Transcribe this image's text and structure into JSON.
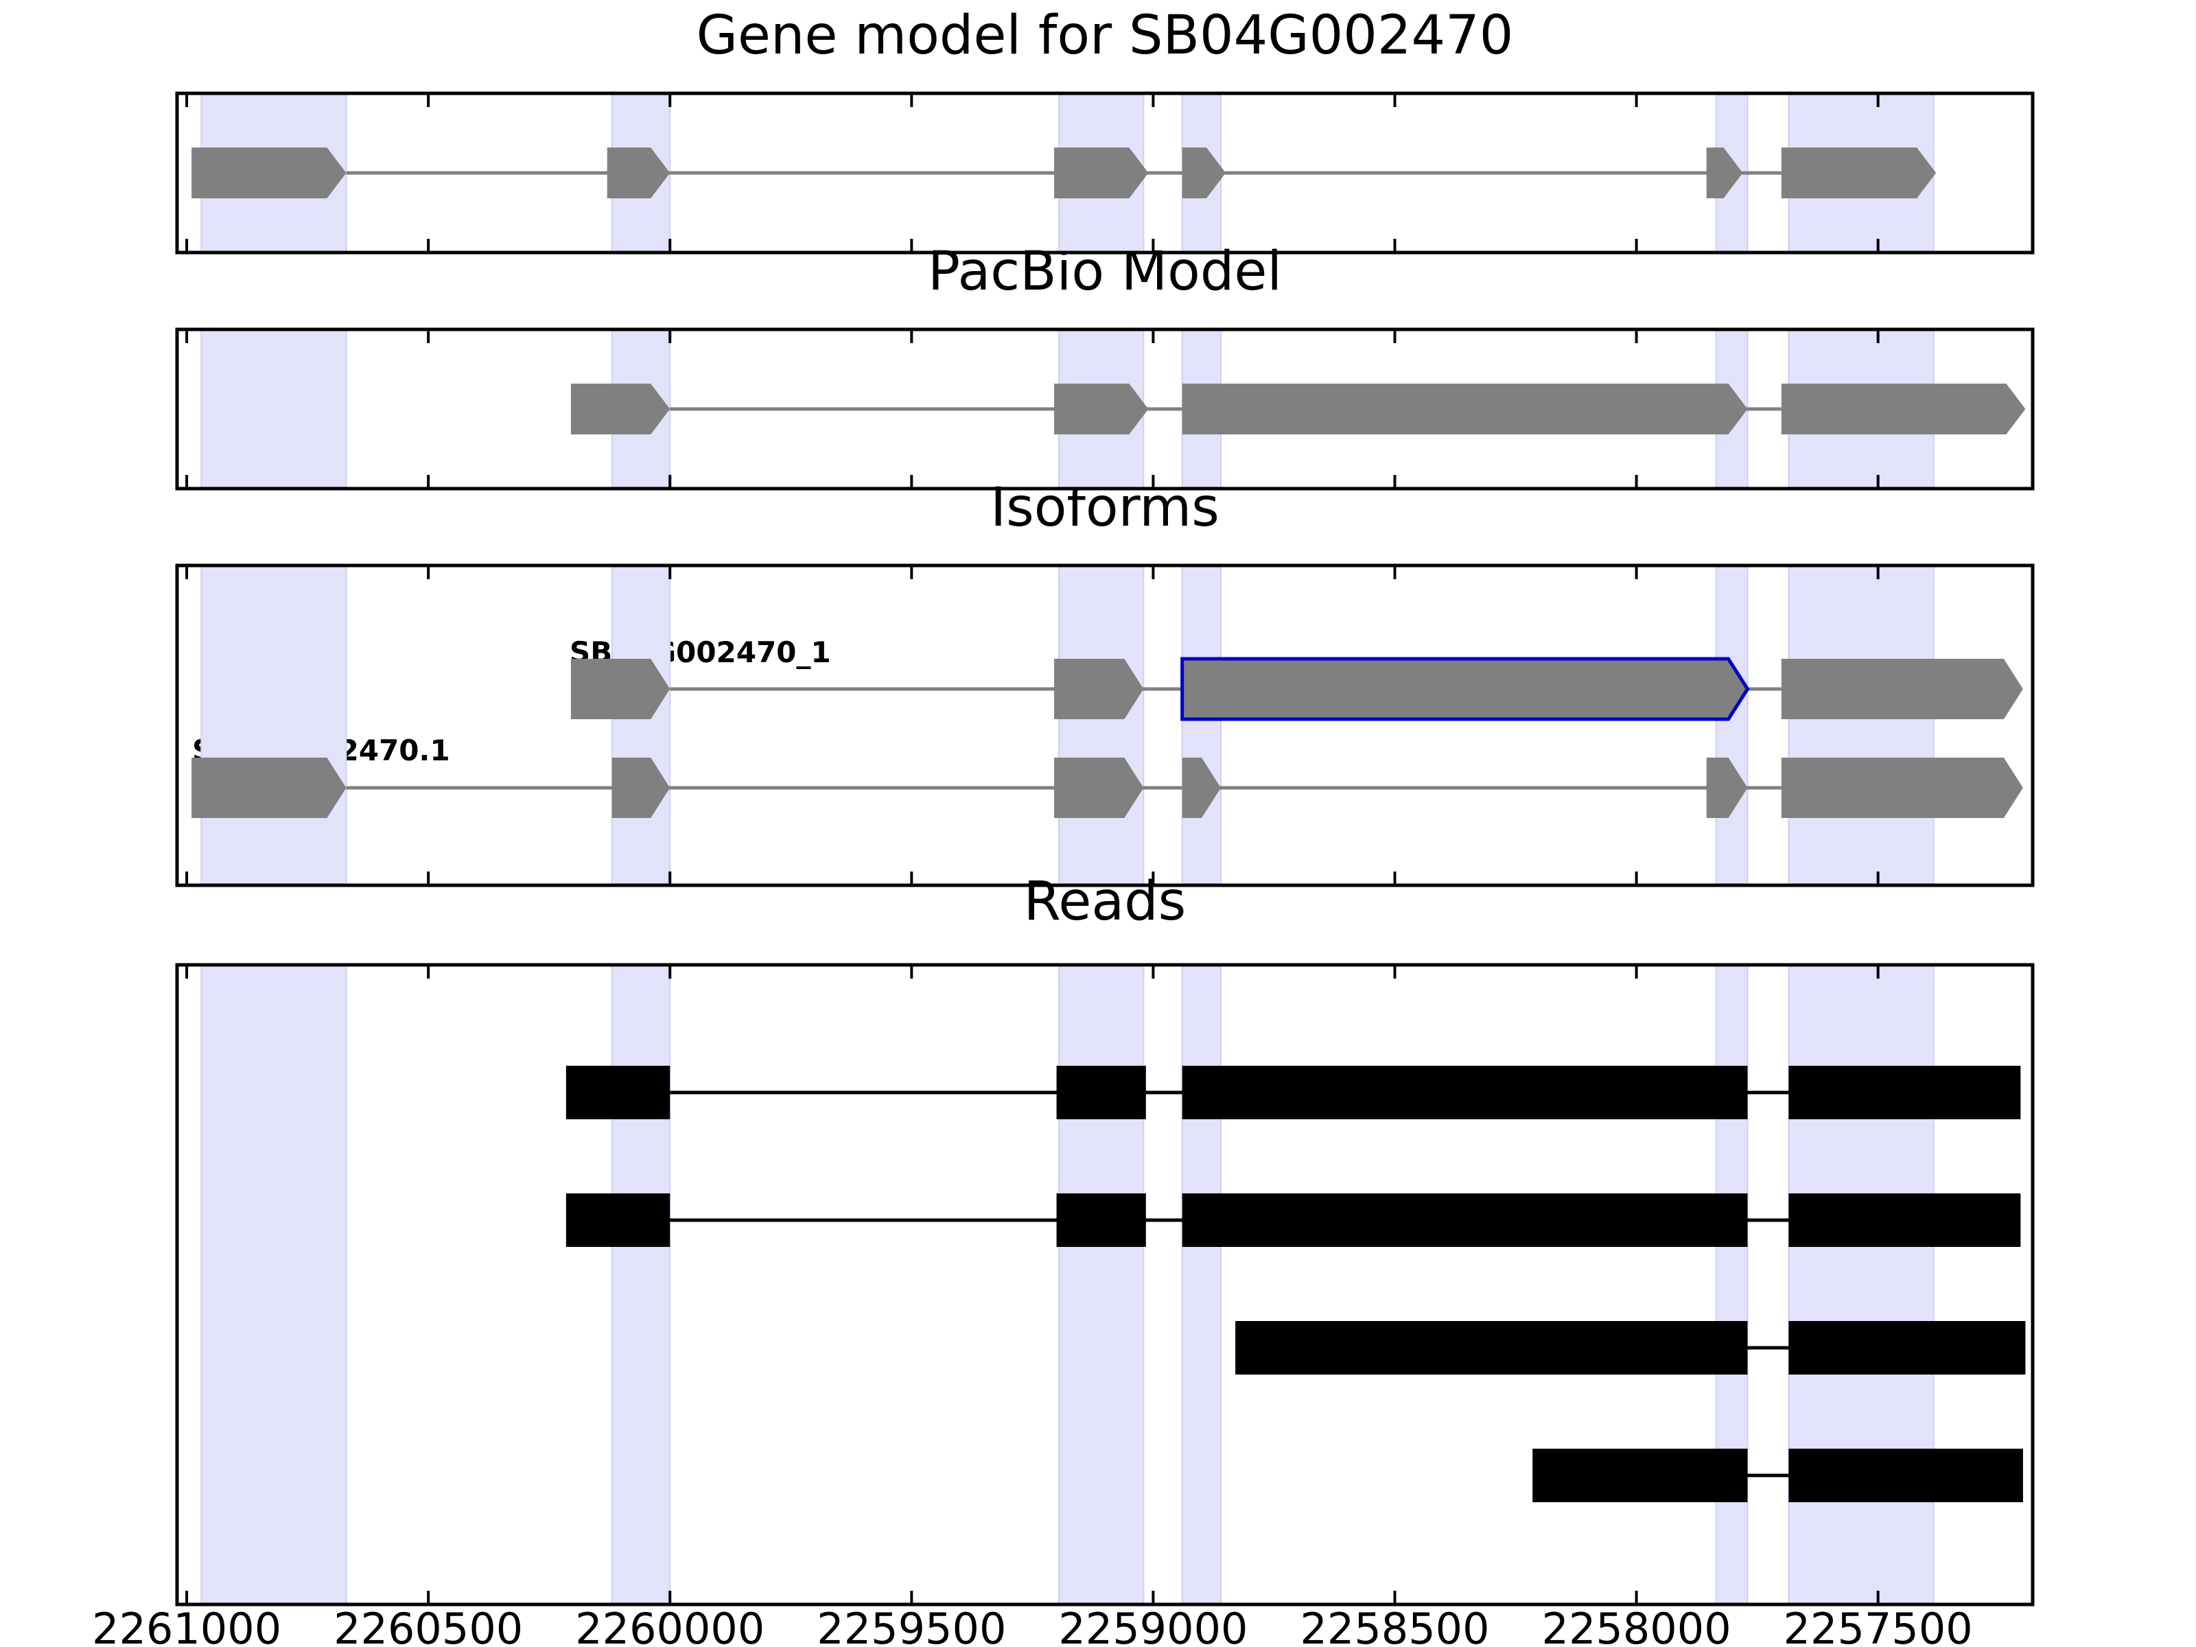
{
  "colors": {
    "highlight": "#e2e2fa",
    "exon_gray": "#808080",
    "intron_gray": "#808080",
    "read_black": "#000000",
    "selected_outline": "#0000cc",
    "frame": "#000000"
  },
  "chart_data": [
    {
      "type": "gene-structure",
      "title": "Gene model for SB04G002470",
      "xlim": [
        2261020,
        2257180
      ],
      "highlight_regions": [
        [
          2260970,
          2260670
        ],
        [
          2260120,
          2260000
        ],
        [
          2259195,
          2259020
        ],
        [
          2258940,
          2258860
        ],
        [
          2257835,
          2257770
        ],
        [
          2257685,
          2257385
        ]
      ],
      "tracks": [
        {
          "label": "",
          "exons": [
            [
              2260990,
              2260670
            ],
            [
              2260130,
              2260000
            ],
            [
              2259205,
              2259010
            ],
            [
              2258940,
              2258850
            ],
            [
              2257855,
              2257780
            ],
            [
              2257700,
              2257380
            ]
          ],
          "strand": "-"
        }
      ]
    },
    {
      "type": "gene-structure",
      "title": "PacBio Model",
      "xlim": [
        2261020,
        2257180
      ],
      "highlight_regions": [
        [
          2260970,
          2260670
        ],
        [
          2260120,
          2260000
        ],
        [
          2259195,
          2259020
        ],
        [
          2258940,
          2258860
        ],
        [
          2257835,
          2257770
        ],
        [
          2257685,
          2257385
        ]
      ],
      "tracks": [
        {
          "label": "",
          "exons": [
            [
              2260205,
              2260000
            ],
            [
              2259205,
              2259010
            ],
            [
              2258940,
              2257770
            ],
            [
              2257700,
              2257195
            ]
          ],
          "strand": "-"
        }
      ]
    },
    {
      "type": "gene-structure",
      "title": "Isoforms",
      "xlim": [
        2261020,
        2257180
      ],
      "highlight_regions": [
        [
          2260970,
          2260670
        ],
        [
          2260120,
          2260000
        ],
        [
          2259195,
          2259020
        ],
        [
          2258940,
          2258860
        ],
        [
          2257835,
          2257770
        ],
        [
          2257685,
          2257385
        ]
      ],
      "tracks": [
        {
          "label": "SB04G002470_1",
          "exons": [
            [
              2260205,
              2260000
            ],
            [
              2259205,
              2259020
            ],
            [
              2258940,
              2257770
            ],
            [
              2257700,
              2257200
            ]
          ],
          "selected_exon": 2,
          "strand": "-"
        },
        {
          "label": "SB04G002470.1",
          "exons": [
            [
              2260990,
              2260670
            ],
            [
              2260120,
              2260000
            ],
            [
              2259205,
              2259020
            ],
            [
              2258940,
              2258860
            ],
            [
              2257855,
              2257770
            ],
            [
              2257700,
              2257200
            ]
          ],
          "strand": "-"
        }
      ]
    },
    {
      "type": "gene-structure",
      "title": "Reads",
      "xlim": [
        2261020,
        2257180
      ],
      "xticks": [
        2261000,
        2260500,
        2260000,
        2259500,
        2259000,
        2258500,
        2258000,
        2257500
      ],
      "xtick_labels": [
        "2261000",
        "2260500",
        "2260000",
        "2259500",
        "2259000",
        "2258500",
        "2258000",
        "2257500"
      ],
      "highlight_regions": [
        [
          2260970,
          2260670
        ],
        [
          2260120,
          2260000
        ],
        [
          2259195,
          2259020
        ],
        [
          2258940,
          2258860
        ],
        [
          2257835,
          2257770
        ],
        [
          2257685,
          2257385
        ]
      ],
      "tracks": [
        {
          "label": "",
          "exons": [
            [
              2260215,
              2260000
            ],
            [
              2259200,
              2259015
            ],
            [
              2258940,
              2257770
            ],
            [
              2257685,
              2257205
            ]
          ]
        },
        {
          "label": "",
          "exons": [
            [
              2260215,
              2260000
            ],
            [
              2259200,
              2259015
            ],
            [
              2258940,
              2257770
            ],
            [
              2257685,
              2257205
            ]
          ]
        },
        {
          "label": "",
          "exons": [
            [
              2258830,
              2257770
            ],
            [
              2257685,
              2257195
            ]
          ]
        },
        {
          "label": "",
          "exons": [
            [
              2258215,
              2257770
            ],
            [
              2257685,
              2257200
            ]
          ]
        }
      ]
    }
  ]
}
